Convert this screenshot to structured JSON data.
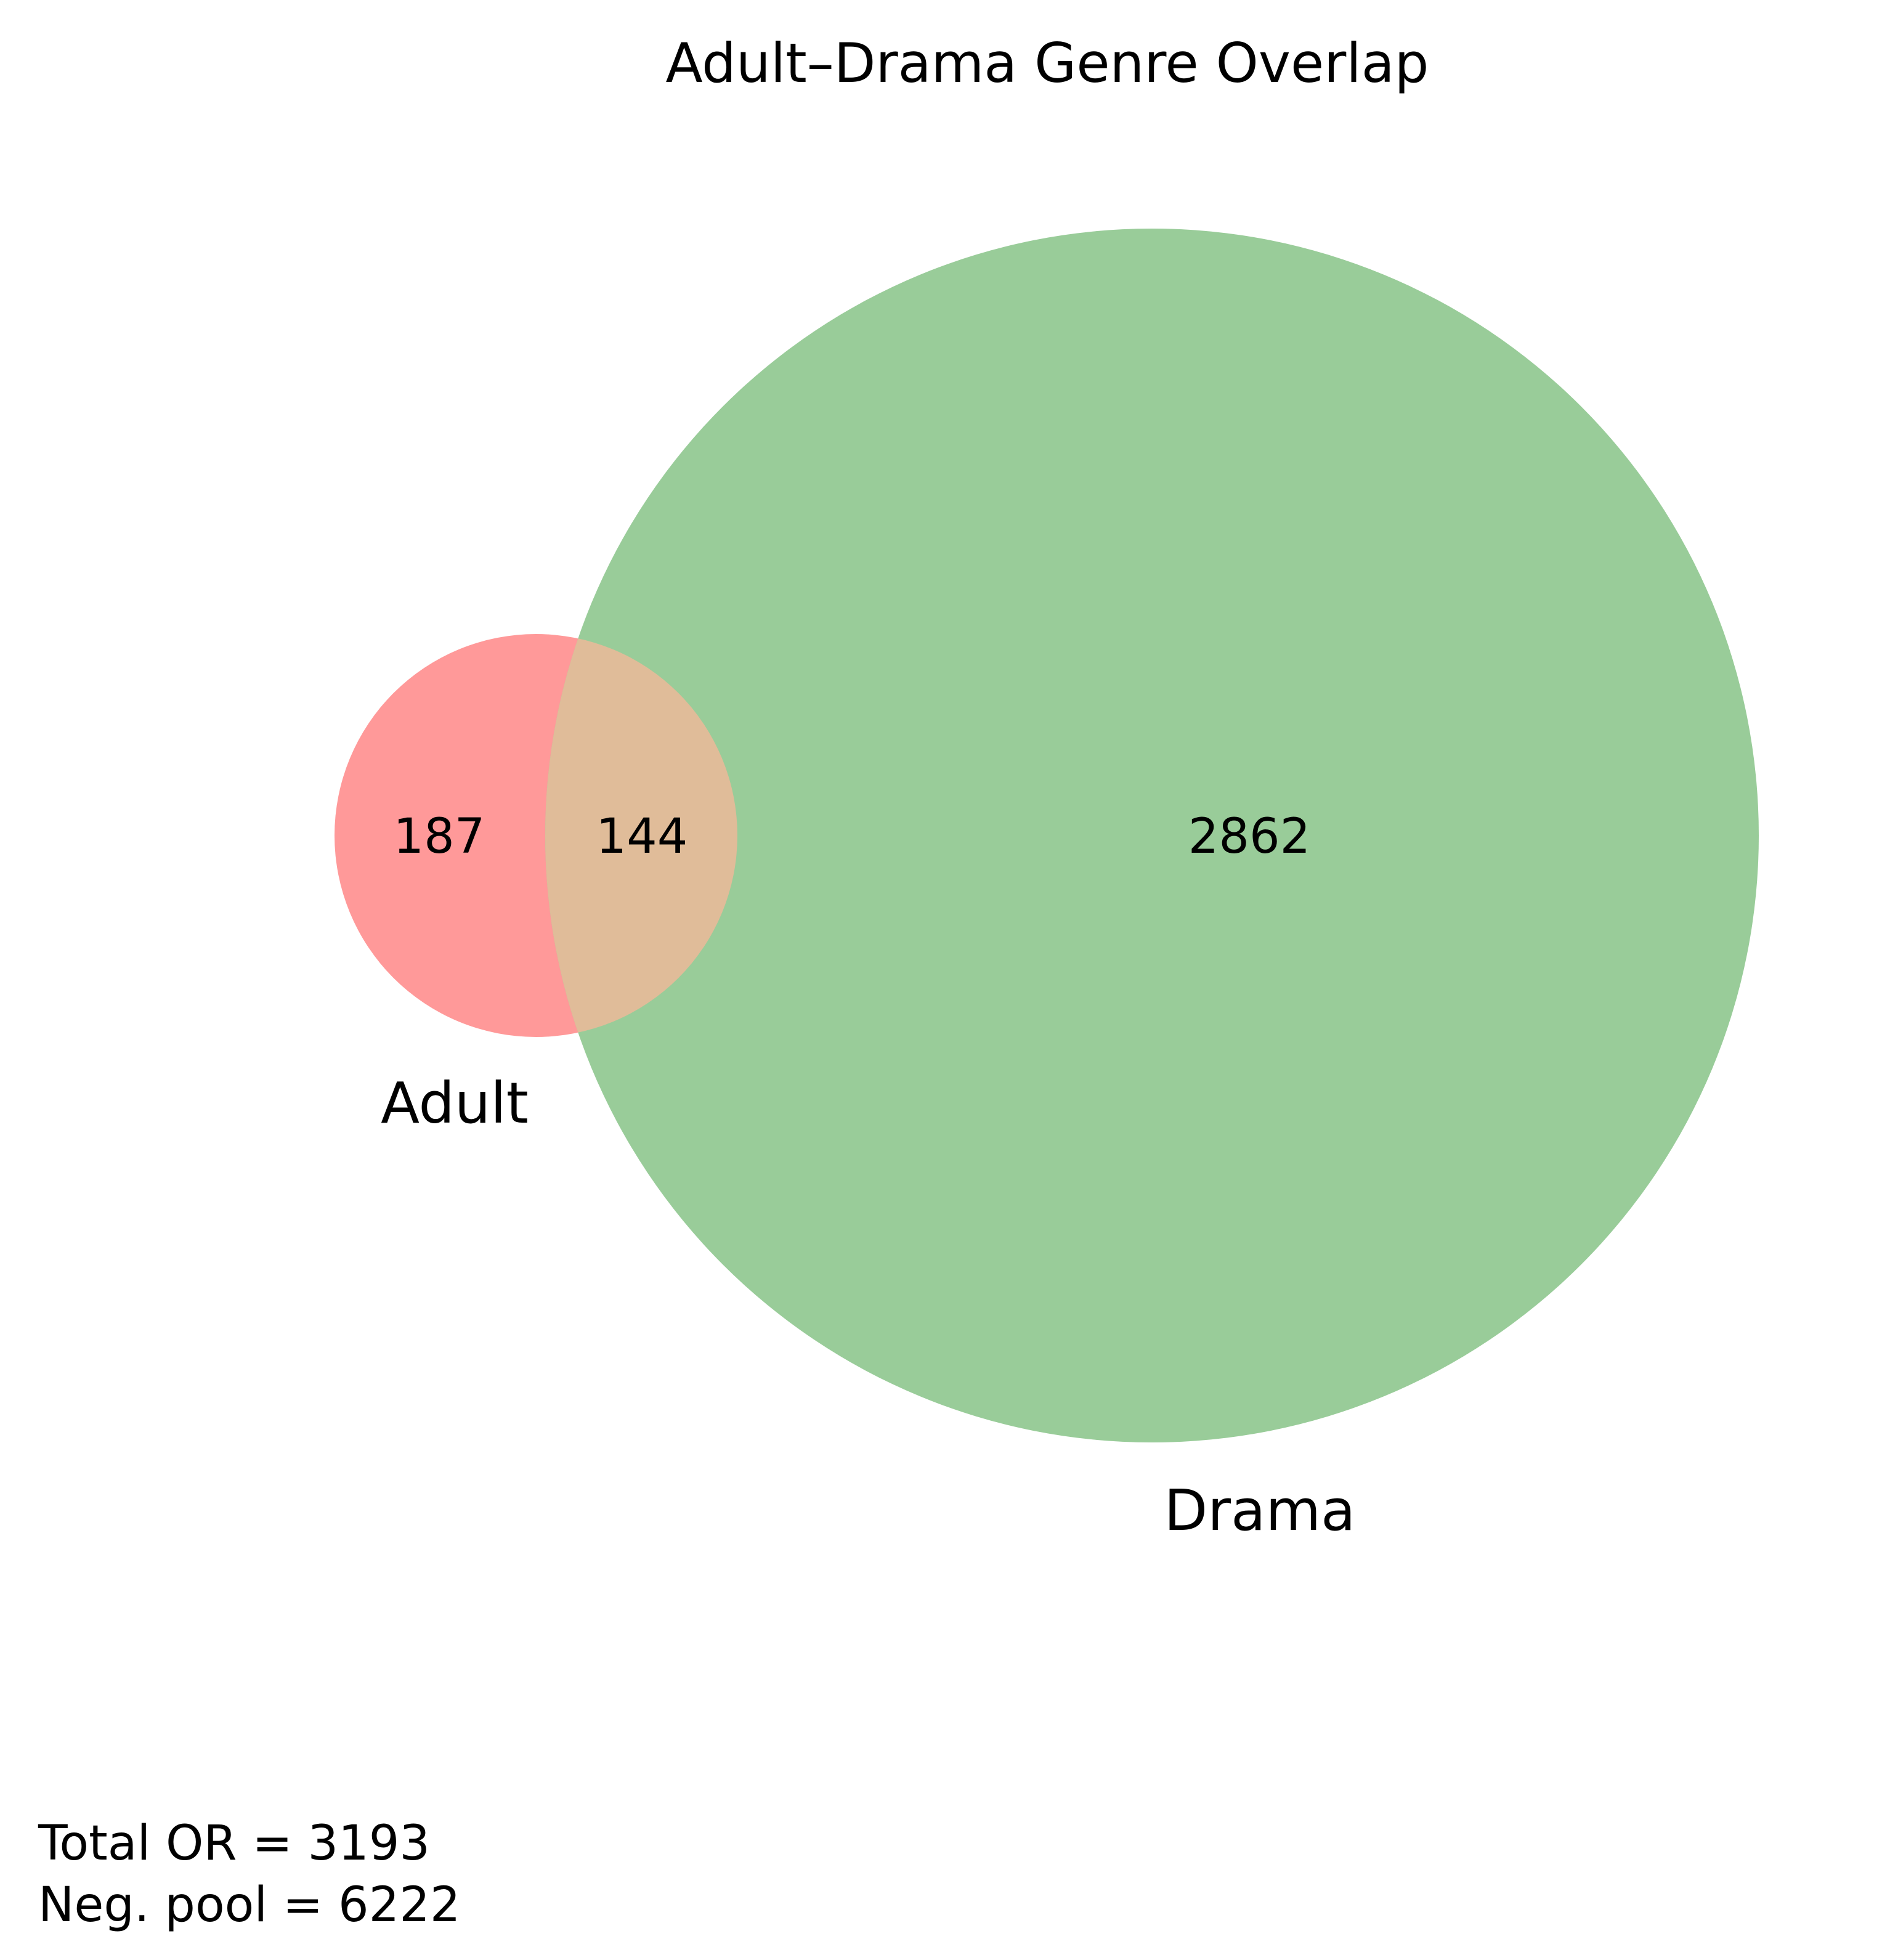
{
  "diagram": {
    "title": "Adult–Drama Genre Overlap",
    "sets": [
      {
        "name": "Adult",
        "color": "#ff9999"
      },
      {
        "name": "Drama",
        "color": "#99cc99"
      }
    ],
    "regions": {
      "adult_only": "187",
      "both": "144",
      "drama_only": "2862"
    },
    "overlap_color": "#e0bc99"
  },
  "footer": {
    "total_or": "Total OR = 3193",
    "neg_pool": "Neg. pool = 6222"
  }
}
